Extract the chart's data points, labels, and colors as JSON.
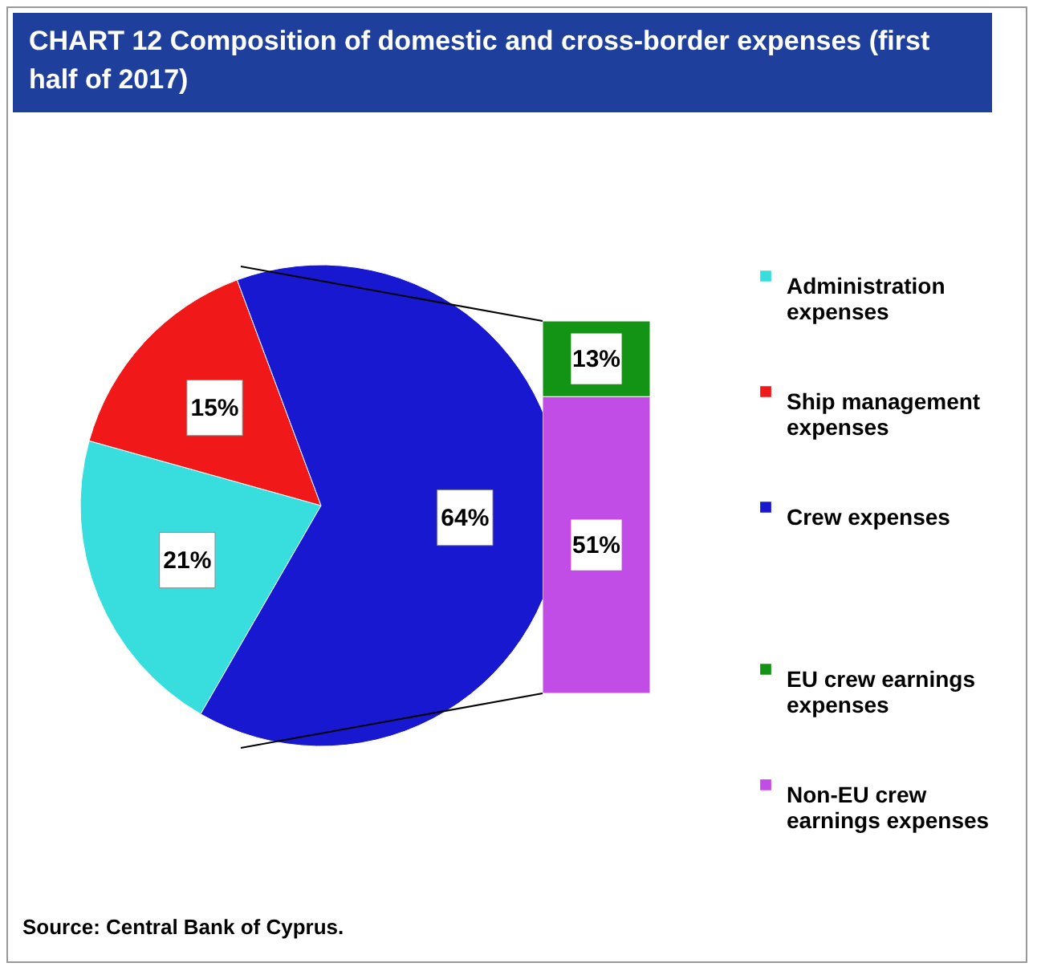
{
  "chart_data": [
    {
      "type": "pie",
      "title": "CHART 12  Composition of domestic and cross-border expenses (first half of 2017)",
      "categories": [
        "Administration expenses",
        "Ship management expenses",
        "Crew expenses"
      ],
      "values": [
        21,
        15,
        64
      ],
      "value_labels": [
        "21%",
        "15%",
        "64%"
      ],
      "colors": [
        "#38dede",
        "#f01818",
        "#1818d0"
      ],
      "legend": "right",
      "annotations": [
        "Source: Central Bank of Cyprus."
      ]
    },
    {
      "type": "bar",
      "stacked": true,
      "categories": [
        null
      ],
      "legend": "right",
      "series": [
        {
          "name": "Non-EU crew earnings expenses",
          "color": "#c24ce6",
          "values": [
            51
          ],
          "value_labels": [
            "51%"
          ]
        },
        {
          "name": "EU crew earnings expenses",
          "color": "#149414",
          "values": [
            13
          ],
          "value_labels": [
            "13%"
          ]
        }
      ]
    }
  ]
}
